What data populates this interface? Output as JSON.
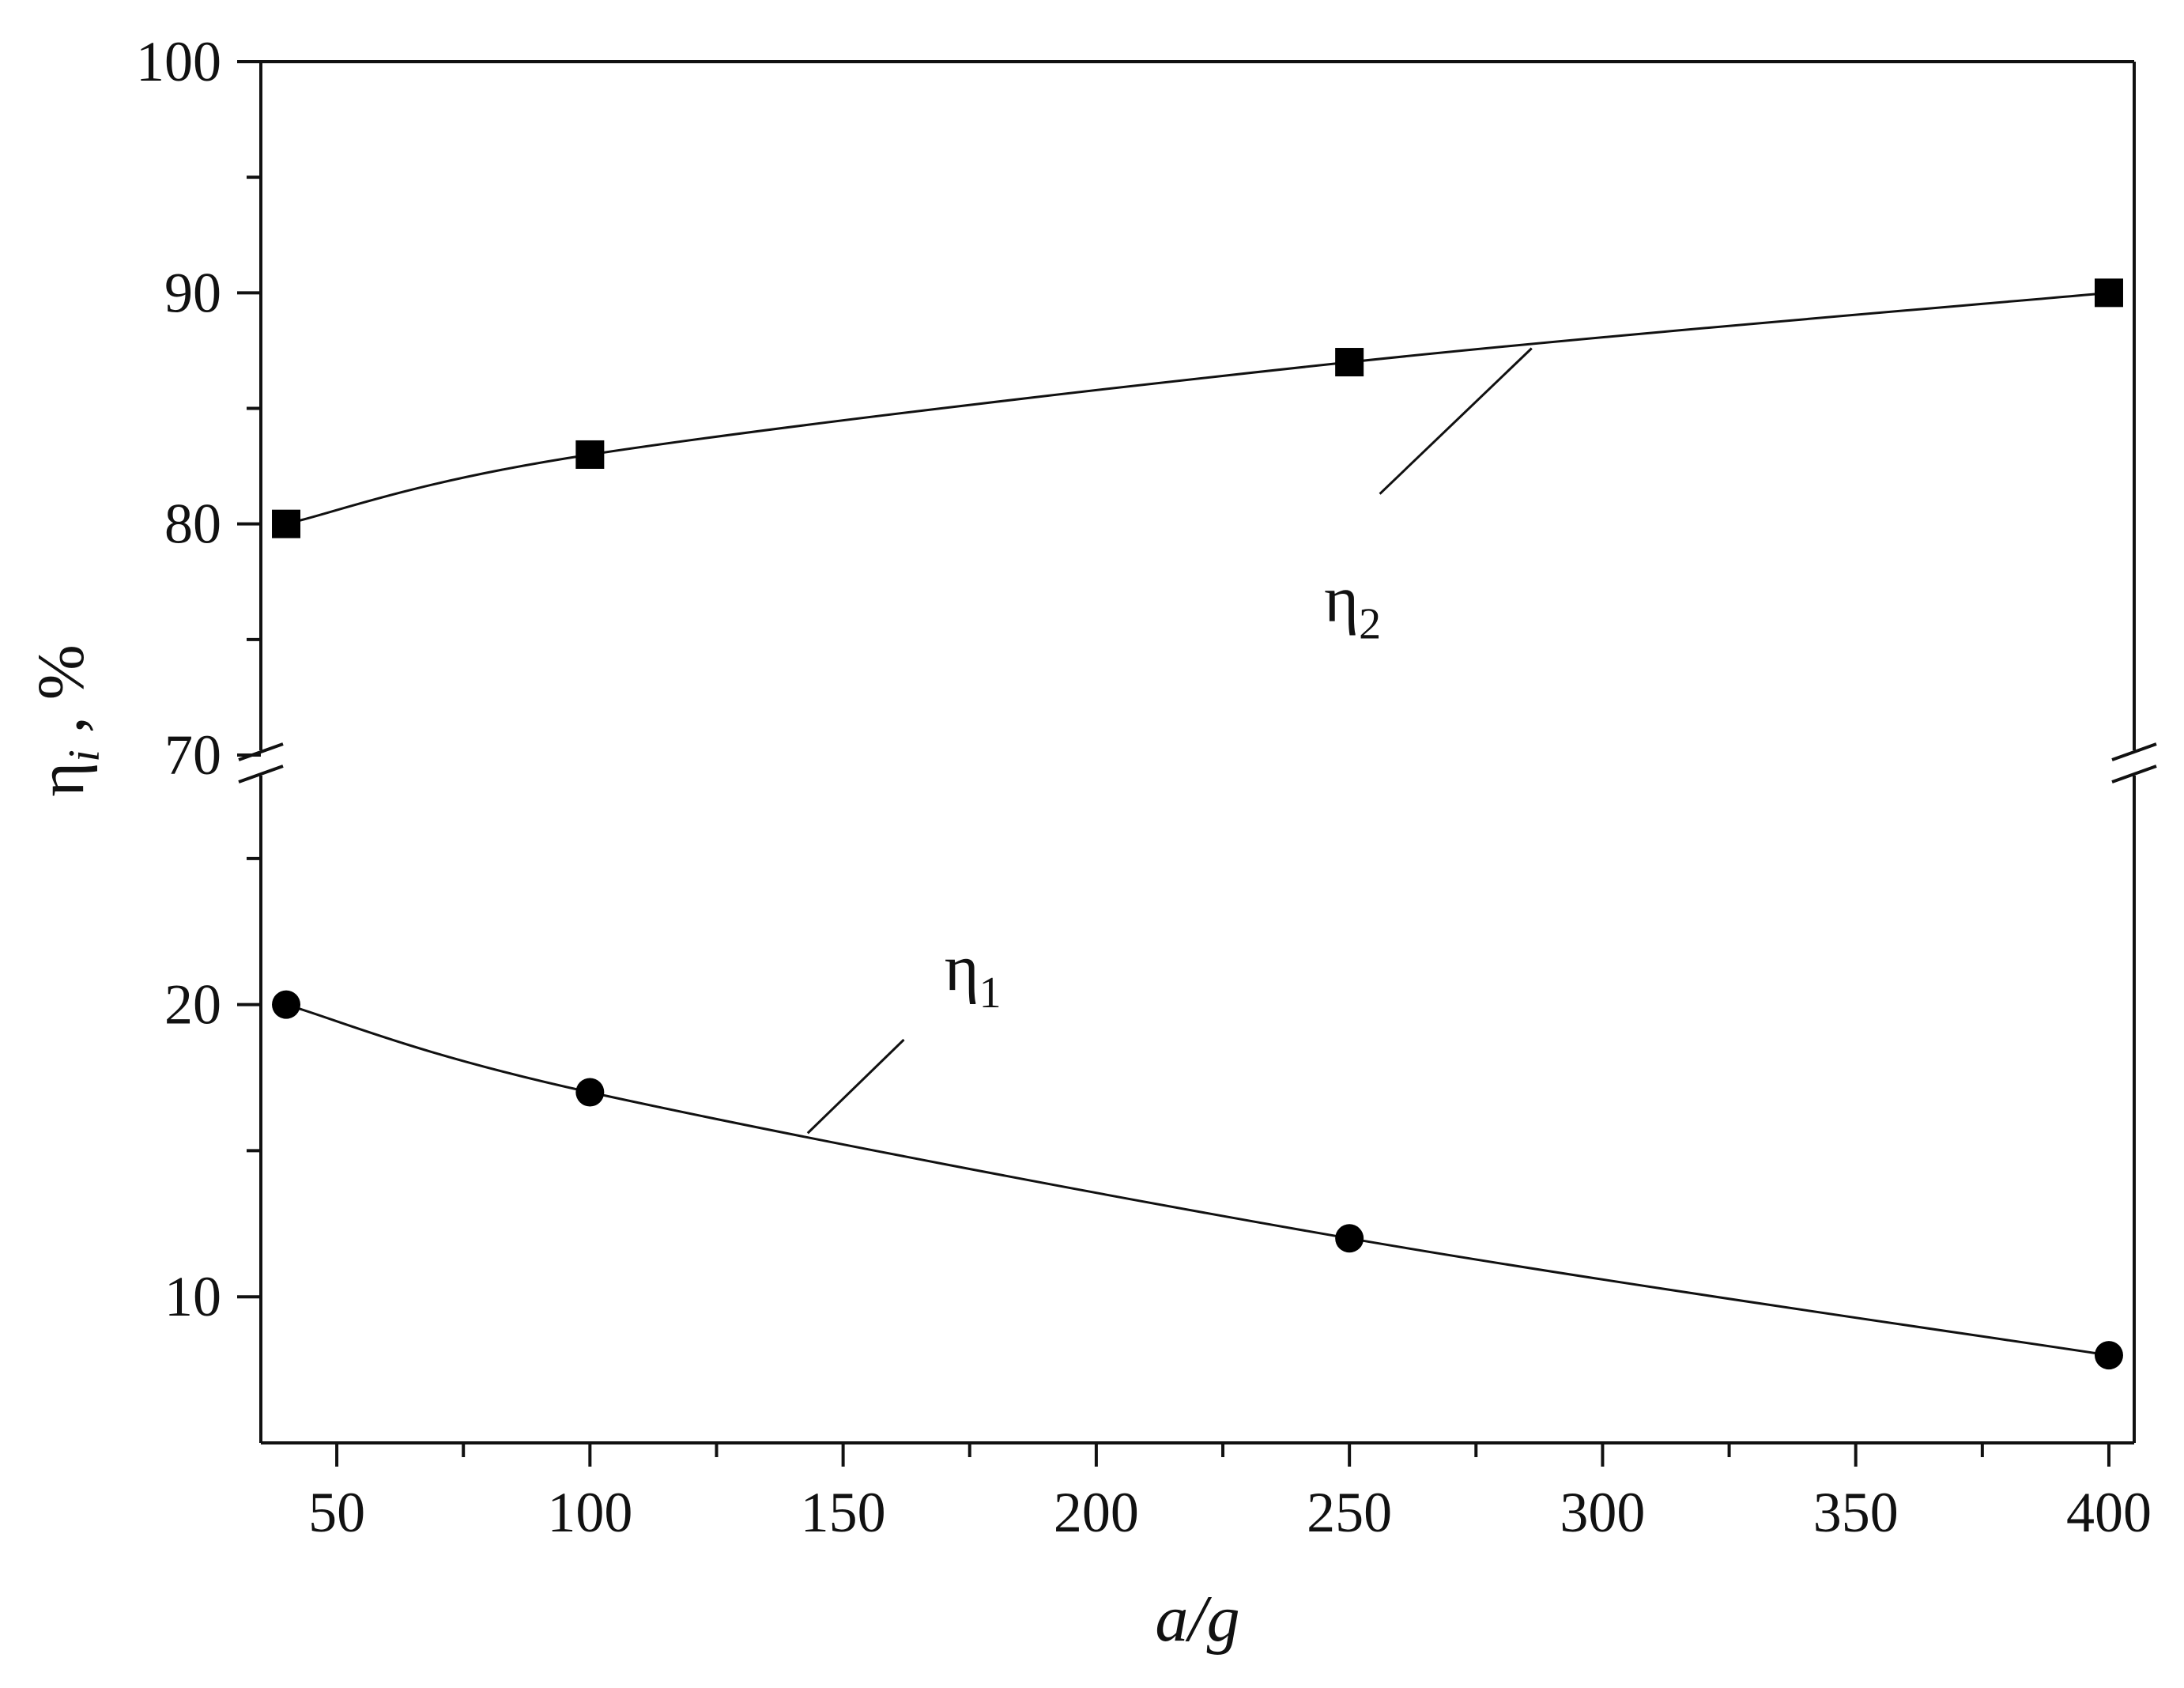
{
  "chart_data": {
    "type": "line",
    "x": [
      40,
      100,
      250,
      400
    ],
    "xlim": [
      35,
      405
    ],
    "xticks": [
      50,
      100,
      150,
      200,
      250,
      300,
      350,
      400
    ],
    "xlabel": "a/g",
    "ylabel": "η_i , %",
    "ylabel_parts": {
      "main": "η",
      "sub": "i",
      "suffix": " , %"
    },
    "y_axis_break": {
      "lower": {
        "range": [
          5,
          28
        ],
        "ticks": [
          10,
          20
        ]
      },
      "upper": {
        "range": [
          70,
          100
        ],
        "ticks": [
          70,
          80,
          90,
          100
        ]
      }
    },
    "series": [
      {
        "name": "η₁",
        "label_main": "η",
        "label_sub": "1",
        "marker": "circle",
        "values": [
          20,
          17,
          12,
          8
        ]
      },
      {
        "name": "η₂",
        "label_main": "η",
        "label_sub": "2",
        "marker": "square",
        "values": [
          80,
          83,
          87,
          90
        ]
      }
    ],
    "grid": false,
    "legend": "none"
  }
}
